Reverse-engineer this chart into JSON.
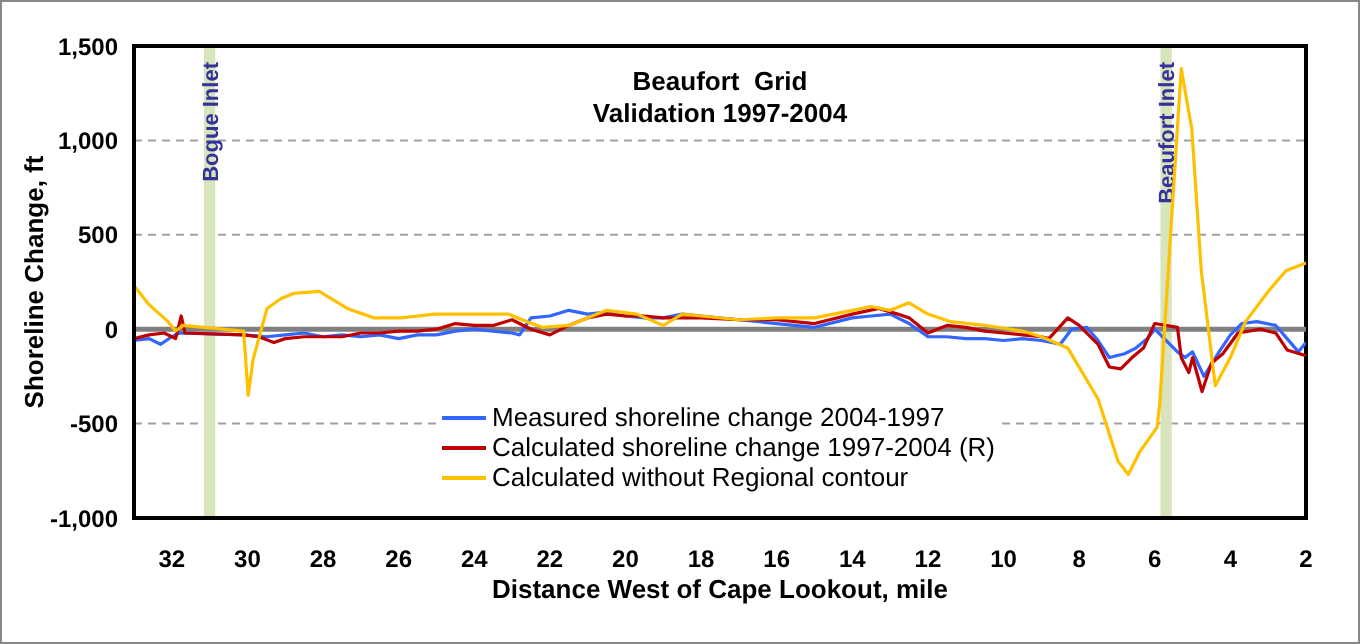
{
  "chart_data": {
    "type": "line",
    "title": "Beaufort  Grid",
    "subtitle": "Validation 1997-2004",
    "xlabel": "Distance West of Cape Lookout, mile",
    "ylabel": "Shoreline Change, ft",
    "xlim": [
      33,
      2
    ],
    "xticks": [
      32,
      30,
      28,
      26,
      24,
      22,
      20,
      18,
      16,
      14,
      12,
      10,
      8,
      6,
      4,
      2
    ],
    "ylim": [
      -1000,
      1500
    ],
    "yticks": [
      {
        "value": -1000,
        "label": "-1,000"
      },
      -500,
      0,
      500,
      {
        "value": 1000,
        "label": "1,000"
      },
      {
        "value": 1500,
        "label": "1,500"
      }
    ],
    "grid": "y",
    "legend": "bottom",
    "marker": "none",
    "line_style": "solid",
    "ref_lines": [
      {
        "axis": "y",
        "value": 0,
        "color": "#808080"
      }
    ],
    "bands": [
      {
        "axis": "x",
        "from": 31.15,
        "to": 30.85,
        "label": "Bogue Inlet",
        "color": "#d8e4bc"
      },
      {
        "axis": "x",
        "from": 5.85,
        "to": 5.55,
        "label": "Beaufort Inlet",
        "color": "#d8e4bc"
      }
    ],
    "series": [
      {
        "name": "Measured shoreline change 2004-1997",
        "color": "#3366ff",
        "x": [
          33,
          32.6,
          32.3,
          32.0,
          31.8,
          30.1,
          29.5,
          29,
          28.5,
          28,
          27.5,
          27,
          26.5,
          26,
          25.5,
          25,
          24.5,
          24,
          23.5,
          23,
          22.8,
          22.5,
          22,
          21.5,
          21,
          20.5,
          20,
          19.5,
          19,
          18.5,
          18,
          17,
          16,
          15,
          14,
          13.5,
          13,
          12.5,
          12,
          11.5,
          11,
          10.5,
          10,
          9.5,
          9,
          8.5,
          8.2,
          7.8,
          7.5,
          7.2,
          6.8,
          6.5,
          6.2,
          6.0,
          5.4,
          5.2,
          5.0,
          4.7,
          4.3,
          4.0,
          3.7,
          3.3,
          2.8,
          2.5,
          2.2,
          2
        ],
        "values": [
          -60,
          -50,
          -80,
          -40,
          -20,
          -30,
          -40,
          -30,
          -20,
          -40,
          -30,
          -40,
          -30,
          -50,
          -30,
          -30,
          -10,
          0,
          -10,
          -20,
          -30,
          60,
          70,
          100,
          80,
          90,
          70,
          60,
          60,
          80,
          70,
          50,
          30,
          10,
          60,
          70,
          80,
          30,
          -40,
          -40,
          -50,
          -50,
          -60,
          -50,
          -60,
          -80,
          0,
          10,
          -60,
          -150,
          -130,
          -100,
          -50,
          0,
          -120,
          -150,
          -120,
          -250,
          -120,
          -30,
          30,
          40,
          20,
          -50,
          -120,
          -70
        ]
      },
      {
        "name": "Calculated shoreline change 1997-2004 (R)",
        "color": "#c00000",
        "x": [
          33,
          32.6,
          32.2,
          31.9,
          31.75,
          31.65,
          30.1,
          29.7,
          29.3,
          29,
          28.5,
          28,
          27.5,
          27,
          26.5,
          26,
          25.5,
          25,
          24.5,
          24,
          23.5,
          23,
          22.5,
          22,
          21.5,
          21,
          20.5,
          20,
          19.5,
          19,
          18.5,
          18,
          17,
          16,
          15,
          14,
          13.3,
          12.8,
          12.5,
          12,
          11.5,
          11,
          10.5,
          10,
          9.5,
          9,
          8.8,
          8.3,
          8.0,
          7.5,
          7.2,
          6.9,
          6.6,
          6.3,
          6.0,
          5.4,
          5.3,
          5.1,
          5.0,
          4.75,
          4.5,
          4.2,
          3.8,
          3.2,
          2.8,
          2.5,
          2
        ],
        "values": [
          -50,
          -30,
          -20,
          -50,
          70,
          -20,
          -30,
          -40,
          -70,
          -50,
          -40,
          -40,
          -40,
          -20,
          -20,
          -10,
          -10,
          0,
          30,
          20,
          20,
          50,
          0,
          -30,
          20,
          60,
          80,
          70,
          70,
          60,
          60,
          60,
          50,
          50,
          30,
          80,
          110,
          80,
          60,
          -20,
          20,
          10,
          -10,
          -20,
          -30,
          -40,
          -50,
          60,
          20,
          -80,
          -200,
          -210,
          -150,
          -100,
          30,
          10,
          -150,
          -230,
          -150,
          -330,
          -180,
          -130,
          -20,
          0,
          -20,
          -110,
          -140
        ]
      },
      {
        "name": "Calculated without Regional contour",
        "color": "#ffc000",
        "x": [
          33,
          32.6,
          32.1,
          31.9,
          31.7,
          30.1,
          29.98,
          29.85,
          29.48,
          29.13,
          28.77,
          28.1,
          27.36,
          26.65,
          25.94,
          25.05,
          24.2,
          23.1,
          22.6,
          22.2,
          21.5,
          20.5,
          19.7,
          19.0,
          18.5,
          18,
          17,
          16,
          15,
          14,
          13.5,
          13,
          12.5,
          12,
          11.4,
          10.5,
          9.5,
          9,
          8.3,
          7.5,
          6.97,
          6.7,
          6.4,
          5.94,
          5.87,
          5.3,
          5.02,
          4.77,
          4.4,
          4.0,
          3.6,
          3.0,
          2.53,
          2
        ],
        "values": [
          230,
          130,
          40,
          -10,
          20,
          -10,
          -350,
          -160,
          110,
          160,
          190,
          200,
          110,
          60,
          60,
          80,
          80,
          80,
          40,
          10,
          20,
          100,
          80,
          20,
          80,
          70,
          50,
          60,
          60,
          100,
          120,
          100,
          140,
          80,
          40,
          20,
          -10,
          -40,
          -100,
          -370,
          -700,
          -770,
          -650,
          -520,
          -400,
          1380,
          1060,
          310,
          -300,
          -150,
          40,
          200,
          310,
          350
        ]
      }
    ]
  }
}
